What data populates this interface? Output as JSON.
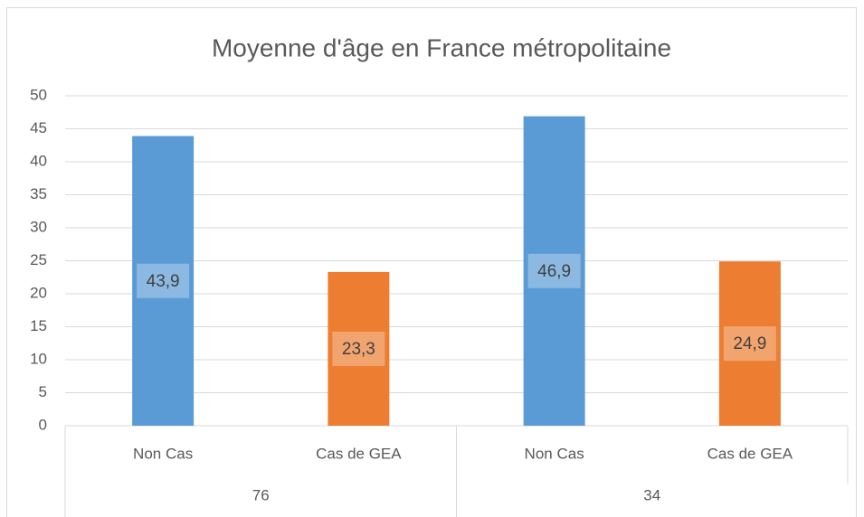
{
  "chart_data": {
    "type": "bar",
    "title": "Moyenne d'âge en France métropolitaine",
    "categories": [
      "Non Cas",
      "Cas de GEA",
      "Non Cas",
      "Cas de GEA"
    ],
    "groups": [
      "76",
      "34"
    ],
    "values": [
      43.9,
      23.3,
      46.9,
      24.9
    ],
    "value_labels": [
      "43,9",
      "23,3",
      "46,9",
      "24,9"
    ],
    "colors": [
      "#5b9bd5",
      "#ed7d31",
      "#5b9bd5",
      "#ed7d31"
    ],
    "ylim": [
      0,
      50
    ],
    "yticks": [
      0,
      5,
      10,
      15,
      20,
      25,
      30,
      35,
      40,
      45,
      50
    ],
    "grid": true
  }
}
